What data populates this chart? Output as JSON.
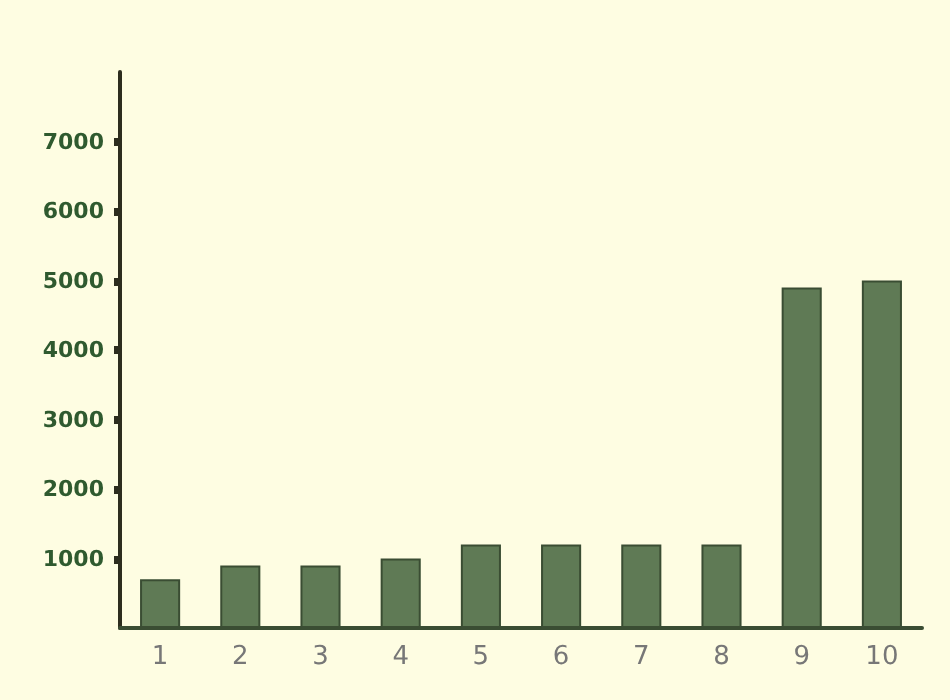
{
  "chart_data": {
    "type": "bar",
    "categories": [
      "1",
      "2",
      "3",
      "4",
      "5",
      "6",
      "7",
      "8",
      "9",
      "10"
    ],
    "values": [
      700,
      900,
      900,
      1000,
      1200,
      1200,
      1200,
      1200,
      4900,
      5000
    ],
    "color": "#5f7a55",
    "ylim": [
      0,
      8000
    ],
    "yticks": [
      1000,
      2000,
      3000,
      4000,
      5000,
      6000,
      7000
    ],
    "grid": false
  }
}
